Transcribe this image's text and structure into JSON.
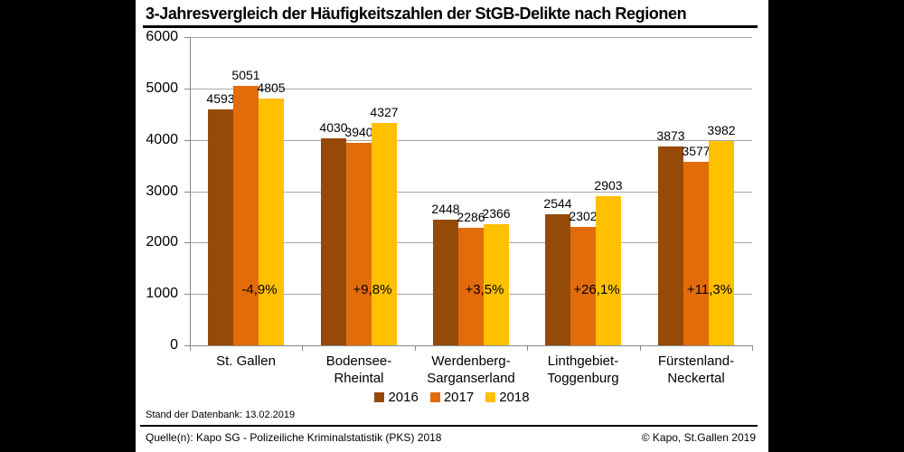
{
  "window": {
    "background": "#000000",
    "panel_background": "#ffffff"
  },
  "title": "3-Jahresvergleich der Häufigkeitszahlen der StGB-Delikte nach Regionen",
  "chart_data": {
    "type": "bar",
    "title": "3-Jahresvergleich der Häufigkeitszahlen der StGB-Delikte nach Regionen",
    "categories": [
      "St. Gallen",
      "Bodensee-\nRheintal",
      "Werdenberg-\nSarganserland",
      "Linthgebiet-\nToggenburg",
      "Fürstenland-\nNeckertal"
    ],
    "series": [
      {
        "name": "2016",
        "color": "#964A08",
        "values": [
          4593,
          4030,
          2448,
          2544,
          3873
        ]
      },
      {
        "name": "2017",
        "color": "#E36C0A",
        "values": [
          5051,
          3940,
          2286,
          2302,
          3577
        ]
      },
      {
        "name": "2018",
        "color": "#FFC000",
        "values": [
          4805,
          4327,
          2366,
          2903,
          3982
        ]
      }
    ],
    "change_labels": [
      "-4,9%",
      "+9,8%",
      "+3,5%",
      "+26,1%",
      "+11,3%"
    ],
    "xlabel": "",
    "ylabel": "",
    "ylim": [
      0,
      6000
    ],
    "ytick_step": 1000,
    "grid": true,
    "legend_position": "bottom",
    "grid_color": "#A6A6A6",
    "axis_color": "#898989",
    "text_color": "#000000"
  },
  "footer": {
    "status_line": "Stand der Datenbank: 13.02.2019",
    "source": "Quelle(n): Kapo SG - Polizeiliche Kriminalstatistik (PKS) 2018",
    "copyright": "© Kapo, St.Gallen 2019"
  }
}
